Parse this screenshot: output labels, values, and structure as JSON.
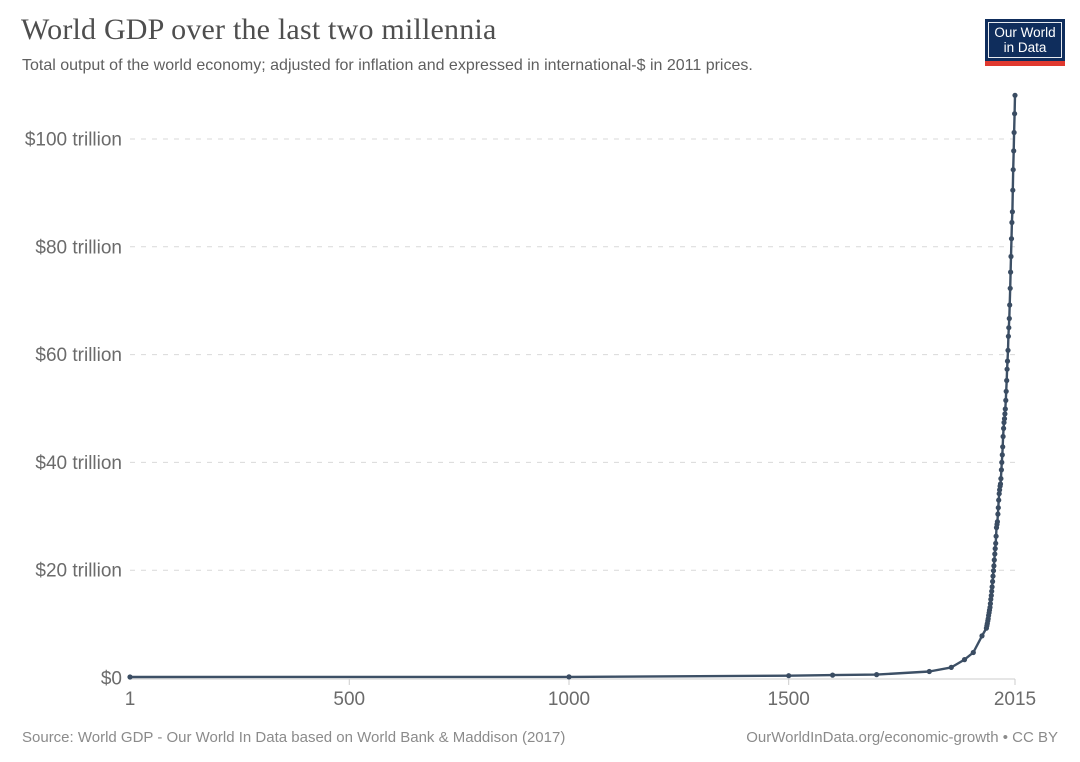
{
  "header": {
    "title": "World GDP over the last two millennia",
    "subtitle": "Total output of the world economy; adjusted for inflation and expressed in international-$ in 2011 prices.",
    "logo": {
      "line1": "Our World",
      "line2": "in Data",
      "bg_color": "#0f2d5c",
      "stripe_color": "#e0392f"
    }
  },
  "footer": {
    "source": "Source: World GDP - Our World In Data based on World Bank & Maddison (2017)",
    "link": "OurWorldInData.org/economic-growth • CC BY"
  },
  "chart_data": {
    "type": "line",
    "title": "World GDP over the last two millennia",
    "subtitle": "Total output of the world economy; adjusted for inflation and expressed in international-$ in 2011 prices.",
    "xlabel": "",
    "ylabel": "",
    "value_unit": "trillion international-$ (2011 prices)",
    "xlim": [
      1,
      2015
    ],
    "ylim": [
      0,
      110
    ],
    "grid": "horizontal-dashed",
    "legend": "none",
    "colors": {
      "line": "#3d5066",
      "point": "#3a4c62",
      "gridline": "#d9d9d9",
      "axis": "#cccccc",
      "axis_label": "#6b6b6b"
    },
    "y_ticks": [
      {
        "v": 0,
        "label": "$0"
      },
      {
        "v": 20,
        "label": "$20 trillion"
      },
      {
        "v": 40,
        "label": "$40 trillion"
      },
      {
        "v": 60,
        "label": "$60 trillion"
      },
      {
        "v": 80,
        "label": "$80 trillion"
      },
      {
        "v": 100,
        "label": "$100 trillion"
      }
    ],
    "x_ticks": [
      {
        "v": 1,
        "label": "1"
      },
      {
        "v": 500,
        "label": "500"
      },
      {
        "v": 1000,
        "label": "1000"
      },
      {
        "v": 1500,
        "label": "1500"
      },
      {
        "v": 2015,
        "label": "2015"
      }
    ],
    "series": [
      {
        "name": "World GDP",
        "points": [
          [
            1,
            0.18
          ],
          [
            1000,
            0.21
          ],
          [
            1500,
            0.43
          ],
          [
            1600,
            0.54
          ],
          [
            1700,
            0.64
          ],
          [
            1820,
            1.2
          ],
          [
            1870,
            1.96
          ],
          [
            1900,
            3.42
          ],
          [
            1920,
            4.74
          ],
          [
            1940,
            7.81
          ],
          [
            1950,
            9.25
          ],
          [
            1951,
            9.7
          ],
          [
            1952,
            10.1
          ],
          [
            1953,
            10.6
          ],
          [
            1954,
            11.0
          ],
          [
            1955,
            11.6
          ],
          [
            1956,
            12.1
          ],
          [
            1957,
            12.6
          ],
          [
            1958,
            13.1
          ],
          [
            1959,
            13.8
          ],
          [
            1960,
            14.6
          ],
          [
            1961,
            15.3
          ],
          [
            1962,
            16.1
          ],
          [
            1963,
            16.9
          ],
          [
            1964,
            17.9
          ],
          [
            1965,
            18.9
          ],
          [
            1966,
            19.9
          ],
          [
            1967,
            20.8
          ],
          [
            1968,
            21.9
          ],
          [
            1969,
            23.0
          ],
          [
            1970,
            24.0
          ],
          [
            1971,
            25.0
          ],
          [
            1972,
            26.3
          ],
          [
            1973,
            27.9
          ],
          [
            1974,
            28.5
          ],
          [
            1975,
            29.0
          ],
          [
            1976,
            30.4
          ],
          [
            1977,
            31.6
          ],
          [
            1978,
            33.0
          ],
          [
            1979,
            34.2
          ],
          [
            1980,
            34.9
          ],
          [
            1981,
            35.6
          ],
          [
            1982,
            36.0
          ],
          [
            1983,
            37.0
          ],
          [
            1984,
            38.6
          ],
          [
            1985,
            40.0
          ],
          [
            1986,
            41.4
          ],
          [
            1987,
            42.9
          ],
          [
            1988,
            44.8
          ],
          [
            1989,
            46.3
          ],
          [
            1990,
            47.4
          ],
          [
            1991,
            48.1
          ],
          [
            1992,
            49.0
          ],
          [
            1993,
            49.9
          ],
          [
            1994,
            51.5
          ],
          [
            1995,
            53.2
          ],
          [
            1996,
            55.2
          ],
          [
            1997,
            57.3
          ],
          [
            1998,
            58.8
          ],
          [
            1999,
            60.8
          ],
          [
            2000,
            63.4
          ],
          [
            2001,
            65.0
          ],
          [
            2002,
            66.7
          ],
          [
            2003,
            69.2
          ],
          [
            2004,
            72.3
          ],
          [
            2005,
            75.3
          ],
          [
            2006,
            78.2
          ],
          [
            2007,
            81.5
          ],
          [
            2008,
            84.5
          ],
          [
            2009,
            86.5
          ],
          [
            2010,
            90.5
          ],
          [
            2011,
            94.3
          ],
          [
            2012,
            97.8
          ],
          [
            2013,
            101.2
          ],
          [
            2014,
            104.7
          ],
          [
            2015,
            108.1
          ]
        ]
      }
    ]
  }
}
